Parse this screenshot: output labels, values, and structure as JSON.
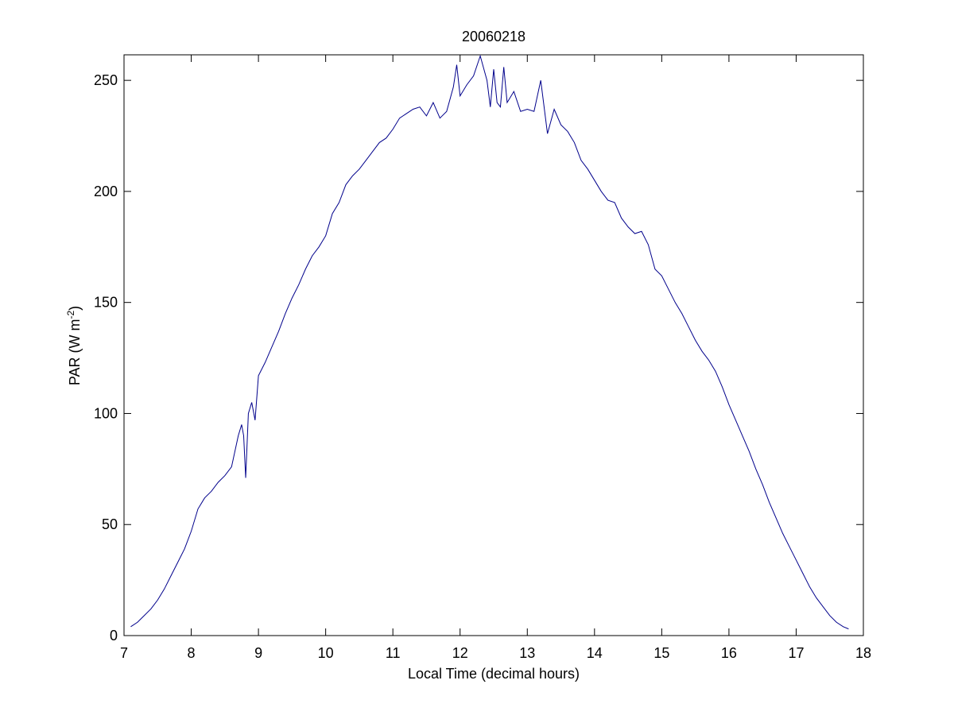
{
  "chart_data": {
    "type": "line",
    "title": "20060218",
    "x_label": "Local Time (decimal hours)",
    "y_label": {
      "text": "PAR (W m",
      "superscript": "-2",
      "suffix": ")"
    },
    "xlim": [
      7,
      18
    ],
    "xticks": [
      7,
      8,
      9,
      10,
      11,
      12,
      13,
      14,
      15,
      16,
      17,
      18
    ],
    "ylim": [
      0,
      261.5
    ],
    "yticks": [
      0,
      50,
      100,
      150,
      200,
      250
    ],
    "grid": false,
    "series": [
      {
        "name": "PAR",
        "color": "#00008b",
        "x": [
          7.1,
          7.2,
          7.3,
          7.4,
          7.5,
          7.6,
          7.7,
          7.8,
          7.9,
          8.0,
          8.1,
          8.2,
          8.3,
          8.4,
          8.5,
          8.6,
          8.7,
          8.75,
          8.78,
          8.81,
          8.85,
          8.9,
          8.95,
          9.0,
          9.1,
          9.2,
          9.3,
          9.4,
          9.5,
          9.6,
          9.7,
          9.8,
          9.9,
          10.0,
          10.1,
          10.2,
          10.3,
          10.4,
          10.5,
          10.6,
          10.7,
          10.8,
          10.9,
          11.0,
          11.1,
          11.2,
          11.3,
          11.4,
          11.5,
          11.6,
          11.7,
          11.8,
          11.9,
          11.95,
          12.0,
          12.1,
          12.2,
          12.3,
          12.4,
          12.45,
          12.5,
          12.55,
          12.6,
          12.65,
          12.7,
          12.8,
          12.9,
          13.0,
          13.1,
          13.2,
          13.3,
          13.4,
          13.5,
          13.6,
          13.7,
          13.8,
          13.9,
          14.0,
          14.1,
          14.2,
          14.3,
          14.4,
          14.5,
          14.6,
          14.7,
          14.8,
          14.9,
          15.0,
          15.1,
          15.2,
          15.3,
          15.4,
          15.5,
          15.6,
          15.7,
          15.8,
          15.9,
          16.0,
          16.1,
          16.2,
          16.3,
          16.4,
          16.5,
          16.6,
          16.7,
          16.8,
          16.9,
          17.0,
          17.1,
          17.2,
          17.3,
          17.4,
          17.5,
          17.6,
          17.7,
          17.78
        ],
        "values": [
          4,
          6,
          9,
          12,
          16,
          21,
          27,
          33,
          39,
          47,
          57,
          62,
          65,
          69,
          72,
          76,
          90,
          95,
          90,
          71,
          100,
          105,
          97,
          117,
          123,
          130,
          137,
          145,
          152,
          158,
          165,
          171,
          175,
          180,
          190,
          195,
          203,
          207,
          210,
          214,
          218,
          222,
          224,
          228,
          233,
          235,
          237,
          238,
          234,
          240,
          233,
          236,
          247,
          257,
          243,
          248,
          252,
          261,
          250,
          238,
          255,
          240,
          238,
          256,
          240,
          245,
          236,
          237,
          236,
          250,
          226,
          237,
          230,
          227,
          222,
          214,
          210,
          205,
          200,
          196,
          195,
          188,
          184,
          181,
          182,
          176,
          165,
          162,
          156,
          150,
          145,
          139,
          133,
          128,
          124,
          119,
          112,
          104,
          97,
          90,
          83,
          75,
          68,
          60,
          53,
          46,
          40,
          34,
          28,
          22,
          17,
          13,
          9,
          6,
          4,
          3
        ]
      }
    ]
  }
}
